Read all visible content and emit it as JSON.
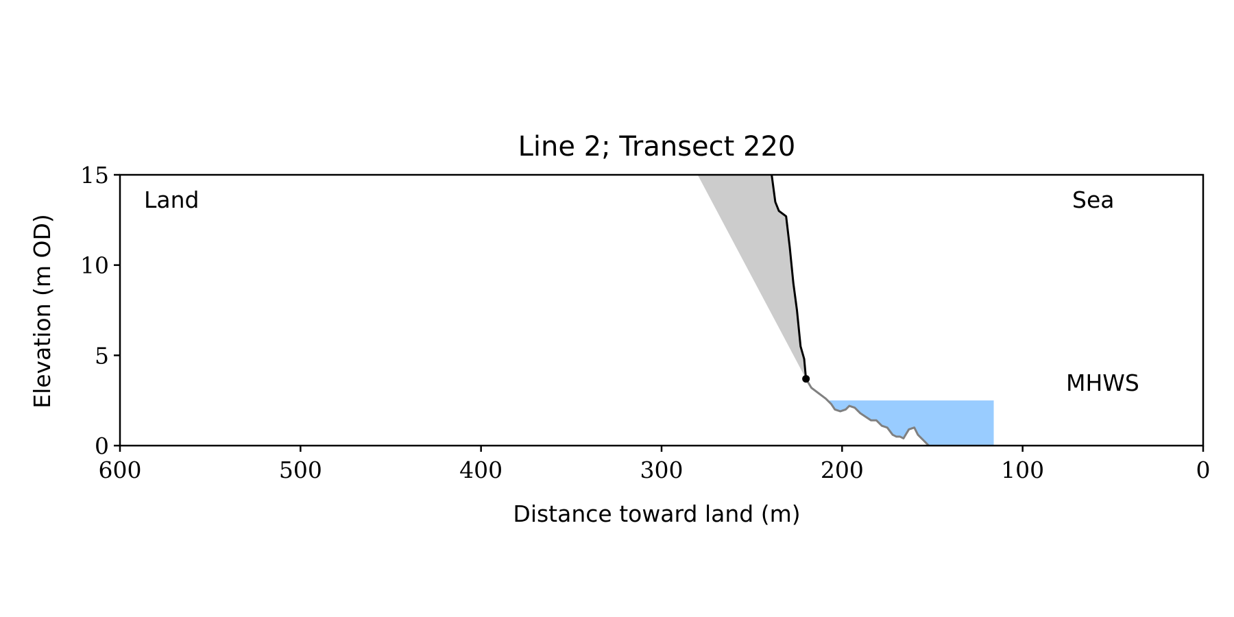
{
  "chart_data": {
    "type": "area",
    "title": "Line 2; Transect 220",
    "xlabel": "Distance toward land (m)",
    "ylabel": "Elevation (m OD)",
    "xlim": [
      600,
      0
    ],
    "ylim": [
      0,
      15
    ],
    "x_inverted": true,
    "xticks": [
      600,
      500,
      400,
      300,
      200,
      100,
      0
    ],
    "xtick_labels": [
      "600",
      "500",
      "400",
      "300",
      "200",
      "100",
      "0"
    ],
    "yticks": [
      0,
      5,
      10,
      15
    ],
    "ytick_labels": [
      "0",
      "5",
      "10",
      "15"
    ],
    "grid": false,
    "annotations": {
      "land": "Land",
      "sea": "Sea",
      "mhws": "MHWS"
    },
    "colors": {
      "cliff_line": "#000000",
      "lower_profile": "#808080",
      "talus_fill": "#cccccc",
      "water_fill": "#99ccff",
      "mhws_text": "#6699cc"
    },
    "cliff_profile": {
      "x": [
        239,
        237,
        235,
        231,
        229,
        227,
        225,
        223,
        221,
        220
      ],
      "y": [
        15.0,
        13.5,
        13.0,
        12.7,
        11.0,
        9.0,
        7.5,
        5.5,
        4.8,
        3.7
      ]
    },
    "cliff_toe": {
      "x": 220,
      "y": 3.7
    },
    "lower_profile": {
      "x": [
        220,
        217,
        213,
        209,
        206,
        204,
        201,
        198,
        196,
        193,
        190,
        187,
        184,
        181,
        178,
        175,
        172,
        170,
        168,
        166,
        163,
        160,
        158,
        156,
        154,
        152
      ],
      "y": [
        3.7,
        3.2,
        2.9,
        2.6,
        2.3,
        2.0,
        1.9,
        2.0,
        2.2,
        2.1,
        1.8,
        1.6,
        1.4,
        1.4,
        1.1,
        1.0,
        0.6,
        0.5,
        0.5,
        0.4,
        0.9,
        1.0,
        0.6,
        0.4,
        0.2,
        0.0
      ]
    },
    "talus_wedge": {
      "x": [
        280,
        239,
        237,
        235,
        231,
        229,
        227,
        225,
        223,
        221,
        220
      ],
      "y": [
        15.0,
        15.0,
        13.5,
        13.0,
        12.7,
        11.0,
        9.0,
        7.5,
        5.5,
        4.8,
        3.7
      ]
    },
    "mhws_level": 2.5,
    "water_extent": [
      207,
      116
    ]
  }
}
